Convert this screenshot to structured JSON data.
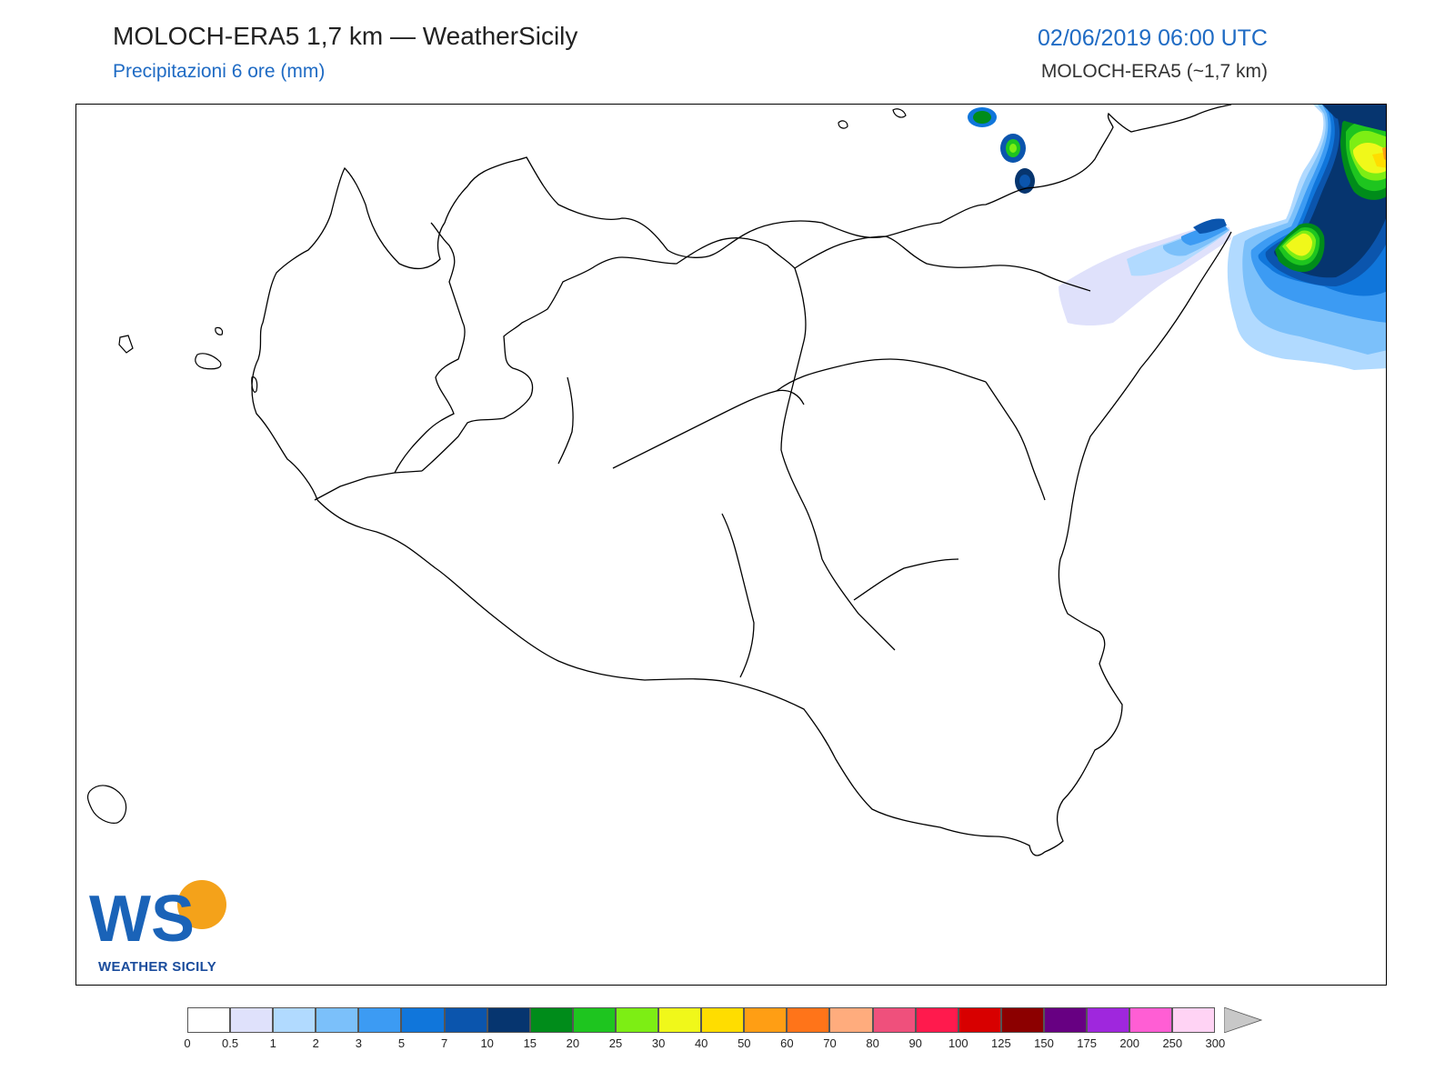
{
  "header": {
    "title": "MOLOCH-ERA5 1,7 km — WeatherSicily",
    "subtitle": "Precipitazioni 6 ore (mm)",
    "datetime": "02/06/2019 06:00 UTC",
    "model_info": "MOLOCH-ERA5 (~1,7 km)"
  },
  "logo": {
    "letters": "WS",
    "caption": "WEATHER SICILY"
  },
  "map": {
    "region": "Sicily",
    "precipitation_areas": [
      "Tyrrhenian coast near Capo Peloro",
      "Calabria (upper right)",
      "Aeolian Islands (Salina, Lipari, Vulcano)"
    ]
  },
  "colorbar": {
    "colors": [
      "#ffffff",
      "#dfe1fb",
      "#b1daff",
      "#7bc0fa",
      "#3c9bf3",
      "#1076db",
      "#0b55ad",
      "#06356f",
      "#008c1a",
      "#1ec51f",
      "#7dee14",
      "#f0f81a",
      "#ffdd00",
      "#ff9e14",
      "#ff7419",
      "#ffac7d",
      "#ef507c",
      "#ff1a4d",
      "#d80000",
      "#8c0000",
      "#670082",
      "#9f27dd",
      "#ff5ed4",
      "#ffd3f4"
    ],
    "ticks": [
      "0",
      "0.5",
      "1",
      "2",
      "3",
      "5",
      "7",
      "10",
      "15",
      "20",
      "25",
      "30",
      "40",
      "50",
      "60",
      "70",
      "80",
      "90",
      "100",
      "125",
      "150",
      "175",
      "200",
      "250",
      "300"
    ],
    "overflow_color": "#c8c8c8"
  }
}
